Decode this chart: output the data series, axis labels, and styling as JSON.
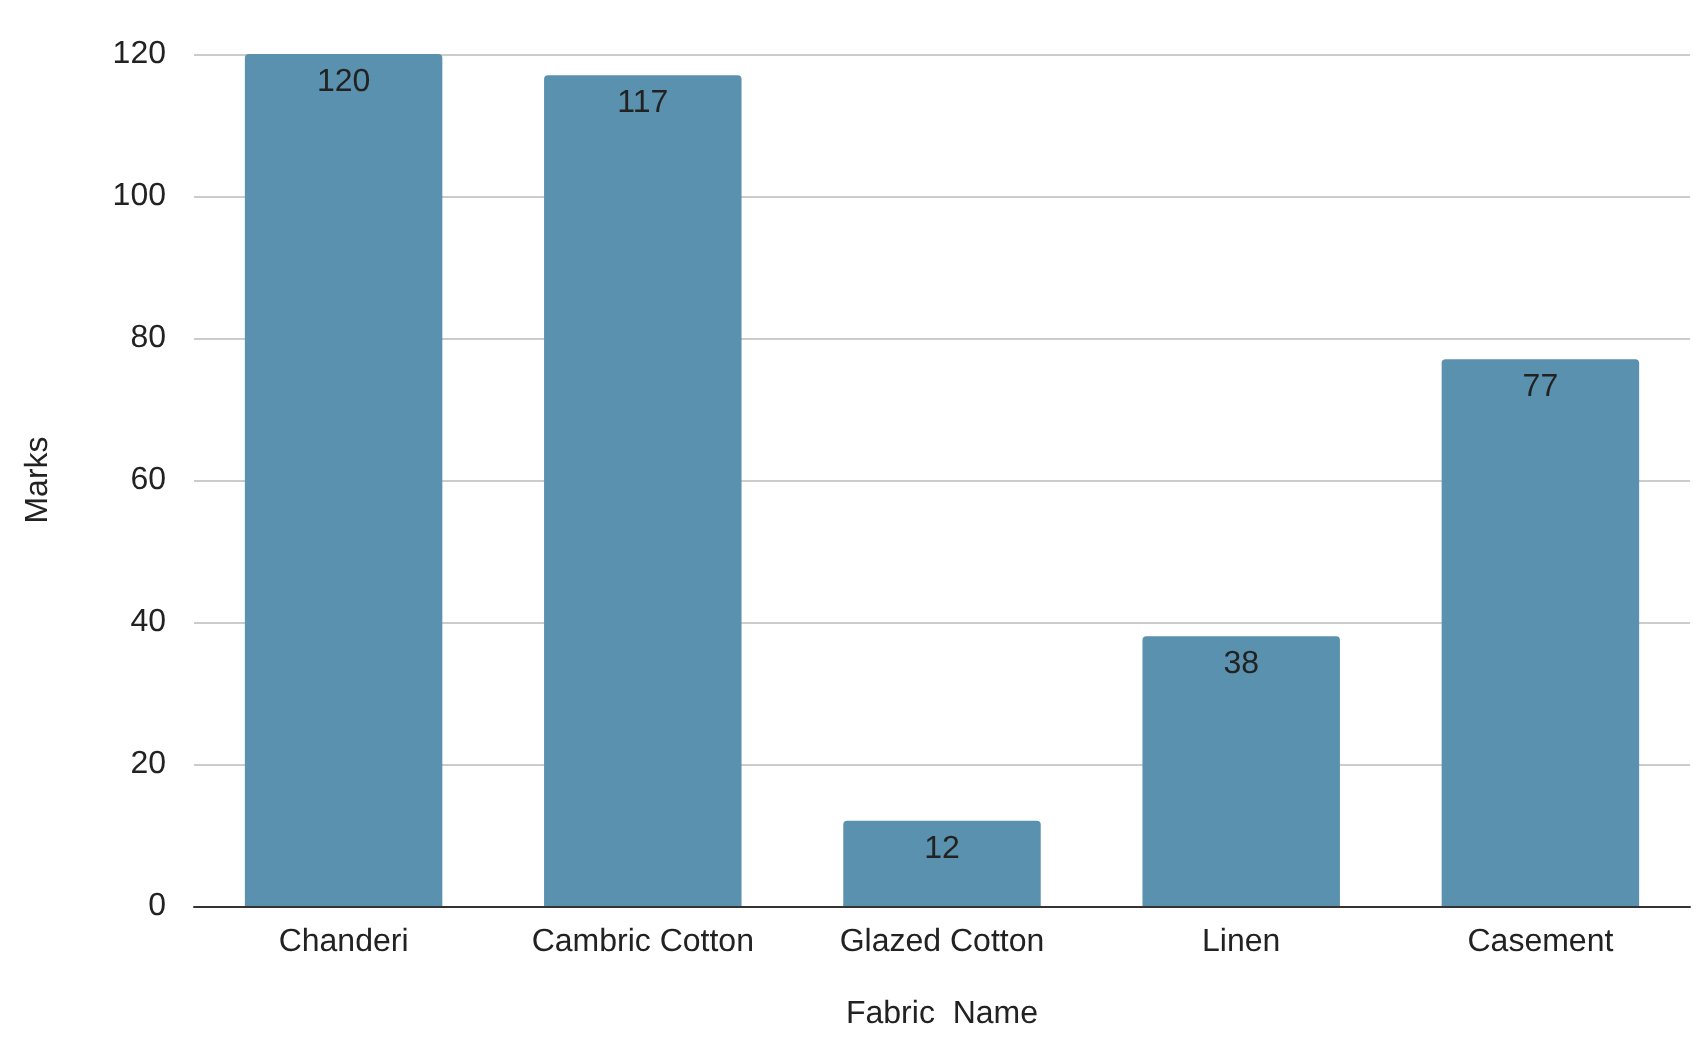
{
  "chart_data": {
    "type": "bar",
    "xlabel": "Fabric  Name",
    "ylabel": "Marks",
    "categories": [
      "Chanderi",
      "Cambric Cotton",
      "Glazed Cotton",
      "Linen",
      "Casement"
    ],
    "values": [
      120,
      117,
      12,
      38,
      77
    ],
    "color": "#5a91ae",
    "ylim": [
      0,
      120
    ],
    "yticks": [
      0,
      20,
      40,
      60,
      80,
      100,
      120
    ],
    "grid": "y",
    "data_labels": true
  }
}
